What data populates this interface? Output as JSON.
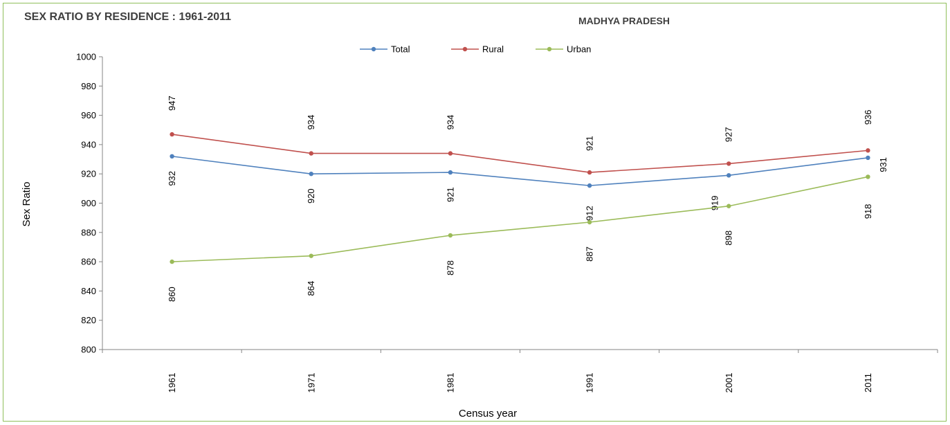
{
  "chart_data": {
    "type": "line",
    "title": "SEX RATIO BY RESIDENCE : 1961-2011",
    "subtitle": "MADHYA PRADESH",
    "xlabel": "Census year",
    "ylabel": "Sex Ratio",
    "categories": [
      "1961",
      "1971",
      "1981",
      "1991",
      "2001",
      "2011"
    ],
    "ylim": [
      800,
      1000
    ],
    "yticks": [
      "800",
      "820",
      "840",
      "860",
      "880",
      "900",
      "920",
      "940",
      "960",
      "980",
      "1000"
    ],
    "legend_position": "top-center",
    "grid": false,
    "series": [
      {
        "name": "Total",
        "color": "#4f81bd",
        "values": [
          932,
          920,
          921,
          912,
          919,
          931
        ]
      },
      {
        "name": "Rural",
        "color": "#c0504d",
        "values": [
          947,
          934,
          934,
          921,
          927,
          936
        ]
      },
      {
        "name": "Urban",
        "color": "#9bbb59",
        "values": [
          860,
          864,
          878,
          887,
          898,
          918
        ]
      }
    ]
  }
}
